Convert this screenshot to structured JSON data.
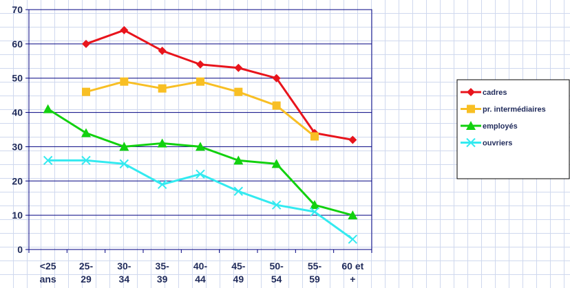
{
  "chart_data": {
    "type": "line",
    "title": "",
    "xlabel": "",
    "ylabel": "",
    "ylim": [
      0,
      70
    ],
    "yticks": [
      "0",
      "10",
      "20",
      "30",
      "40",
      "50",
      "60",
      "70"
    ],
    "categories": [
      [
        "<25",
        "ans"
      ],
      [
        "25-",
        "29"
      ],
      [
        "30-",
        "34"
      ],
      [
        "35-",
        "39"
      ],
      [
        "40-",
        "44"
      ],
      [
        "45-",
        "49"
      ],
      [
        "50-",
        "54"
      ],
      [
        "55-",
        "59"
      ],
      [
        "60 et",
        "+"
      ]
    ],
    "grid": "horizontal",
    "legend_position": "right",
    "series": [
      {
        "name": "cadres",
        "color": "#e8141c",
        "marker": "diamond",
        "values": [
          null,
          60,
          64,
          58,
          54,
          53,
          50,
          34,
          32
        ]
      },
      {
        "name": "pr. intermédiaires",
        "color": "#f8bf24",
        "marker": "square",
        "values": [
          null,
          46,
          49,
          47,
          49,
          46,
          42,
          33,
          null
        ]
      },
      {
        "name": "employés",
        "color": "#12d10f",
        "marker": "triangle",
        "values": [
          41,
          34,
          30,
          31,
          30,
          26,
          25,
          13,
          10
        ]
      },
      {
        "name": "ouvriers",
        "color": "#33eaf0",
        "marker": "x",
        "values": [
          26,
          26,
          25,
          19,
          22,
          17,
          13,
          11,
          3
        ]
      }
    ]
  }
}
